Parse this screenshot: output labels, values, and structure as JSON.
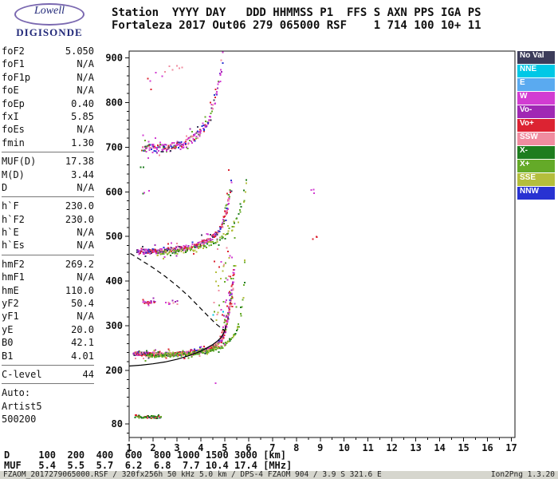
{
  "logo": {
    "line1": "Lowell",
    "line2": "DIGISONDE"
  },
  "header": {
    "line1": "Station  YYYY DAY   DDD HHMMSS P1  FFS S AXN PPS IGA PS",
    "line2": "Fortaleza 2017 Out06 279 065000 RSF    1 714 100 10+ 11"
  },
  "params": {
    "groups": [
      [
        {
          "label": "foF2",
          "value": "5.050"
        },
        {
          "label": "foF1",
          "value": "N/A"
        },
        {
          "label": "foF1p",
          "value": "N/A"
        },
        {
          "label": "foE",
          "value": "N/A"
        },
        {
          "label": "foEp",
          "value": "0.40"
        },
        {
          "label": "fxI",
          "value": "5.85"
        },
        {
          "label": "foEs",
          "value": "N/A"
        },
        {
          "label": "fmin",
          "value": "1.30"
        }
      ],
      [
        {
          "label": "MUF(D)",
          "value": "17.38"
        },
        {
          "label": "M(D)",
          "value": "3.44"
        },
        {
          "label": "D",
          "value": "N/A"
        }
      ],
      [
        {
          "label": "h`F",
          "value": "230.0"
        },
        {
          "label": "h`F2",
          "value": "230.0"
        },
        {
          "label": "h`E",
          "value": "N/A"
        },
        {
          "label": "h`Es",
          "value": "N/A"
        }
      ],
      [
        {
          "label": "hmF2",
          "value": "269.2"
        },
        {
          "label": "hmF1",
          "value": "N/A"
        },
        {
          "label": "hmE",
          "value": "110.0"
        },
        {
          "label": "yF2",
          "value": "50.4"
        },
        {
          "label": "yF1",
          "value": "N/A"
        },
        {
          "label": "yE",
          "value": "20.0"
        },
        {
          "label": "B0",
          "value": "42.1"
        },
        {
          "label": "B1",
          "value": "4.01"
        }
      ],
      [
        {
          "label": "C-level",
          "value": "44"
        }
      ],
      [
        {
          "label": "Auto:",
          "value": ""
        },
        {
          "label": "Artist5",
          "value": ""
        },
        {
          "label": "500200",
          "value": ""
        }
      ]
    ]
  },
  "colors": {
    "no_val": "#3c3c5a",
    "nne": "#00c8e6",
    "e": "#5aaaf0",
    "w": "#d23cd2",
    "vo_minus": "#a028b4",
    "vo_plus": "#dc2332",
    "ssw": "#f08ca0",
    "x_minus": "#1e7d1e",
    "x_plus": "#64aa28",
    "sse": "#b4be3c",
    "nnw": "#2832d2"
  },
  "legend": {
    "items": [
      {
        "label": "No Val",
        "key": "no_val"
      },
      {
        "label": "NNE",
        "key": "nne"
      },
      {
        "label": "E",
        "key": "e"
      },
      {
        "label": "W",
        "key": "w"
      },
      {
        "label": "Vo-",
        "key": "vo_minus"
      },
      {
        "label": "Vo+",
        "key": "vo_plus"
      },
      {
        "label": "SSW",
        "key": "ssw"
      },
      {
        "label": "X-",
        "key": "x_minus"
      },
      {
        "label": "X+",
        "key": "x_plus"
      },
      {
        "label": "SSE",
        "key": "sse"
      },
      {
        "label": "NNW",
        "key": "nnw"
      }
    ]
  },
  "bottom": {
    "d_row": "D     100  200  400  600  800 1000 1500 3000 [km]",
    "muf_row": "MUF   5.4  5.5  5.7  6.2  6.8  7.7 10.4 17.4 [MHz]"
  },
  "status": {
    "left": "FZAOM_2017279065000.RSF / 320fx256h 50 kHz 5.0 km / DPS-4 FZAOM 904 / 3.9 S 321.6 E",
    "right": "Ion2Png 1.3.20"
  },
  "chart_data": {
    "type": "scatter",
    "xlabel": "[MHz]",
    "ylabel": "[km]",
    "xlim": [
      1,
      17.15
    ],
    "ylim": [
      50,
      915
    ],
    "grid": false,
    "seed": 42,
    "x_ticks": [
      1,
      2,
      3,
      4,
      5,
      6,
      7,
      8,
      9,
      10,
      11,
      12,
      13,
      14,
      15,
      16,
      17
    ],
    "y_major_ticks": [
      80,
      200,
      300,
      400,
      500,
      600,
      700,
      800,
      900
    ],
    "y_minor_step": 20,
    "x_minor_step": 0.5,
    "traces": [
      {
        "name": "f2-1st-hop-o",
        "palette": [
          "vo_plus",
          "vo_plus",
          "vo_plus",
          "w",
          "w",
          "vo_minus",
          "ssw",
          "ssw",
          "nnw",
          "no_val",
          "sse"
        ],
        "step": 0.03,
        "per_step": 4,
        "spread": 4,
        "anchors": [
          [
            1.2,
            238
          ],
          [
            1.6,
            237
          ],
          [
            2.1,
            236
          ],
          [
            2.6,
            236
          ],
          [
            3.1,
            237
          ],
          [
            3.6,
            240
          ],
          [
            4.0,
            243
          ],
          [
            4.3,
            248
          ],
          [
            4.6,
            255
          ],
          [
            4.8,
            264
          ],
          [
            4.95,
            276
          ],
          [
            5.05,
            293
          ],
          [
            5.15,
            322
          ],
          [
            5.25,
            358
          ],
          [
            5.3,
            385
          ]
        ]
      },
      {
        "name": "f2-1st-hop-x",
        "palette": [
          "x_plus",
          "x_plus",
          "x_minus",
          "sse",
          "x_plus"
        ],
        "step": 0.05,
        "per_step": 2,
        "spread": 4,
        "anchors": [
          [
            1.7,
            233
          ],
          [
            2.6,
            234
          ],
          [
            3.5,
            237
          ],
          [
            4.2,
            242
          ],
          [
            4.7,
            250
          ],
          [
            5.1,
            262
          ],
          [
            5.4,
            280
          ],
          [
            5.6,
            305
          ],
          [
            5.72,
            345
          ],
          [
            5.8,
            395
          ],
          [
            5.86,
            450
          ]
        ]
      },
      {
        "name": "f2-cusp-spread",
        "palette": [
          "vo_plus",
          "w",
          "ssw",
          "x_plus",
          "vo_minus"
        ],
        "step": 0.025,
        "per_step": 3,
        "spread": 18,
        "anchors": [
          [
            4.85,
            270
          ],
          [
            5.0,
            295
          ],
          [
            5.15,
            330
          ],
          [
            5.3,
            375
          ],
          [
            5.4,
            420
          ]
        ]
      },
      {
        "name": "f2-2nd-hop-o",
        "palette": [
          "vo_plus",
          "vo_plus",
          "w",
          "w",
          "vo_minus",
          "ssw",
          "nnw",
          "no_val"
        ],
        "step": 0.04,
        "per_step": 3,
        "spread": 6,
        "anchors": [
          [
            1.35,
            468
          ],
          [
            1.85,
            466
          ],
          [
            2.35,
            467
          ],
          [
            2.85,
            470
          ],
          [
            3.35,
            474
          ],
          [
            3.8,
            480
          ],
          [
            4.2,
            489
          ],
          [
            4.5,
            498
          ],
          [
            4.75,
            512
          ],
          [
            4.95,
            532
          ],
          [
            5.1,
            560
          ],
          [
            5.2,
            592
          ],
          [
            5.27,
            618
          ]
        ]
      },
      {
        "name": "f2-2nd-hop-x",
        "palette": [
          "x_plus",
          "x_minus",
          "sse"
        ],
        "step": 0.07,
        "per_step": 2,
        "spread": 5,
        "anchors": [
          [
            2.2,
            462
          ],
          [
            3.2,
            467
          ],
          [
            4.1,
            477
          ],
          [
            4.8,
            494
          ],
          [
            5.3,
            518
          ],
          [
            5.6,
            550
          ],
          [
            5.82,
            592
          ],
          [
            5.95,
            635
          ]
        ]
      },
      {
        "name": "f2-2nd-cusp-spread",
        "palette": [
          "vo_plus",
          "w",
          "x_plus",
          "ssw"
        ],
        "step": 0.03,
        "per_step": 2,
        "spread": 15,
        "anchors": [
          [
            4.9,
            525
          ],
          [
            5.05,
            555
          ],
          [
            5.2,
            595
          ]
        ]
      },
      {
        "name": "f2-3rd-hop",
        "palette": [
          "w",
          "w",
          "w",
          "vo_minus",
          "vo_plus",
          "ssw",
          "nnw",
          "x_plus",
          "no_val"
        ],
        "step": 0.045,
        "per_step": 3,
        "spread": 9,
        "anchors": [
          [
            1.55,
            700
          ],
          [
            1.95,
            697
          ],
          [
            2.35,
            698
          ],
          [
            2.75,
            700
          ],
          [
            3.15,
            705
          ],
          [
            3.5,
            712
          ],
          [
            3.8,
            723
          ],
          [
            4.1,
            740
          ],
          [
            4.35,
            763
          ],
          [
            4.55,
            793
          ],
          [
            4.7,
            828
          ],
          [
            4.82,
            865
          ],
          [
            4.9,
            898
          ]
        ]
      },
      {
        "name": "e-layer-echoes",
        "palette": [
          "x_minus",
          "x_plus",
          "vo_plus",
          "no_val",
          "x_minus"
        ],
        "step": 0.04,
        "per_step": 2,
        "spread": 3,
        "anchors": [
          [
            1.25,
            97
          ],
          [
            1.8,
            96
          ],
          [
            2.35,
            96
          ]
        ]
      },
      {
        "name": "cluster-352km",
        "palette": [
          "w",
          "vo_plus",
          "vo_minus"
        ],
        "step": 0.05,
        "per_step": 2,
        "spread": 3,
        "anchors": [
          [
            1.6,
            352
          ],
          [
            2.05,
            353
          ]
        ]
      },
      {
        "name": "cluster-350km-b",
        "palette": [
          "w",
          "vo_minus",
          "ssw"
        ],
        "step": 0.06,
        "per_step": 1,
        "spread": 4,
        "anchors": [
          [
            2.55,
            350
          ],
          [
            3.05,
            352
          ]
        ]
      },
      {
        "name": "spread-f",
        "palette": [
          "vo_plus",
          "x_plus",
          "ssw",
          "w",
          "nne",
          "sse"
        ],
        "step": 0.06,
        "per_step": 3,
        "spread": 80,
        "anchors": [
          [
            4.55,
            390
          ],
          [
            5.0,
            405
          ],
          [
            5.45,
            420
          ]
        ]
      },
      {
        "name": "dots-605km",
        "palette": [
          "w"
        ],
        "step": 0.1,
        "per_step": 1,
        "spread": 3,
        "anchors": [
          [
            8.55,
            603
          ],
          [
            8.8,
            605
          ]
        ]
      },
      {
        "name": "dots-497km",
        "palette": [
          "vo_plus",
          "x_plus"
        ],
        "step": 0.08,
        "per_step": 1,
        "spread": 3,
        "anchors": [
          [
            8.75,
            496
          ],
          [
            8.95,
            498
          ]
        ]
      },
      {
        "name": "top-specks",
        "palette": [
          "w",
          "ssw"
        ],
        "step": 0.14,
        "per_step": 1,
        "spread": 12,
        "anchors": [
          [
            2.2,
            866
          ],
          [
            2.75,
            872
          ],
          [
            3.3,
            880
          ]
        ]
      },
      {
        "name": "left-top-specks",
        "palette": [
          "w",
          "vo_plus"
        ],
        "step": 0.12,
        "per_step": 1,
        "spread": 8,
        "anchors": [
          [
            1.7,
            846
          ],
          [
            2.0,
            852
          ]
        ]
      },
      {
        "name": "specks-660km",
        "palette": [
          "x_minus",
          "w"
        ],
        "step": 0.1,
        "per_step": 1,
        "spread": 4,
        "anchors": [
          [
            1.45,
            658
          ],
          [
            1.6,
            655
          ]
        ]
      },
      {
        "name": "specks-598km",
        "palette": [
          "x_minus",
          "w"
        ],
        "step": 0.1,
        "per_step": 1,
        "spread": 4,
        "anchors": [
          [
            1.55,
            597
          ],
          [
            1.75,
            599
          ]
        ]
      }
    ],
    "curves": {
      "dashed": [
        [
          1.05,
          462
        ],
        [
          1.5,
          447
        ],
        [
          2.0,
          430
        ],
        [
          2.5,
          411
        ],
        [
          3.0,
          390
        ],
        [
          3.5,
          366
        ],
        [
          3.9,
          344
        ],
        [
          4.3,
          322
        ],
        [
          4.6,
          306
        ],
        [
          4.85,
          295
        ],
        [
          5.0,
          289
        ]
      ],
      "solid": [
        [
          1.0,
          210
        ],
        [
          1.5,
          212
        ],
        [
          2.0,
          215
        ],
        [
          2.5,
          219
        ],
        [
          3.0,
          225
        ],
        [
          3.5,
          233
        ],
        [
          3.9,
          241
        ],
        [
          4.2,
          249
        ],
        [
          4.5,
          258
        ],
        [
          4.7,
          266
        ],
        [
          4.85,
          274
        ],
        [
          4.95,
          283
        ],
        [
          5.02,
          293
        ],
        [
          5.05,
          300
        ]
      ]
    }
  }
}
